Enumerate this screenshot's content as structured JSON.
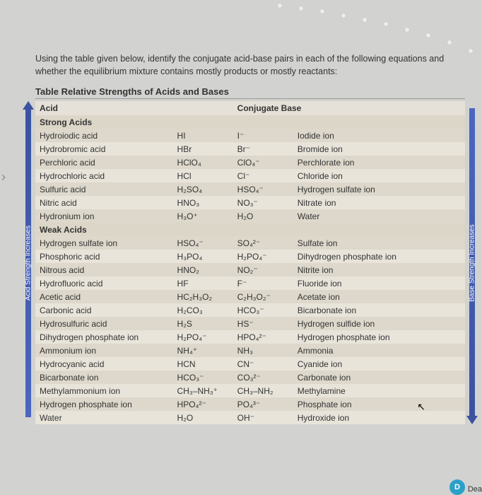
{
  "page": {
    "intro": "Using the table given below, identify the conjugate acid-base pairs in each of the following equations and whether the equilibrium mixture contains mostly products or mostly reactants:",
    "tableTitle": "Table Relative Strengths of Acids and Bases"
  },
  "arrows": {
    "left": "Acid Strength Increases",
    "right": "Base Strength Increases"
  },
  "headers": {
    "acid": "Acid",
    "conjBase": "Conjugate Base"
  },
  "sections": {
    "strong": "Strong Acids",
    "weak": "Weak Acids"
  },
  "strongRows": [
    {
      "name": "Hydroiodic acid",
      "formula": "HI",
      "baseFormula": "I⁻",
      "baseName": "Iodide ion"
    },
    {
      "name": "Hydrobromic acid",
      "formula": "HBr",
      "baseFormula": "Br⁻",
      "baseName": "Bromide ion"
    },
    {
      "name": "Perchloric acid",
      "formula": "HClO₄",
      "baseFormula": "ClO₄⁻",
      "baseName": "Perchlorate ion"
    },
    {
      "name": "Hydrochloric acid",
      "formula": "HCl",
      "baseFormula": "Cl⁻",
      "baseName": "Chloride ion"
    },
    {
      "name": "Sulfuric acid",
      "formula": "H₂SO₄",
      "baseFormula": "HSO₄⁻",
      "baseName": "Hydrogen sulfate ion"
    },
    {
      "name": "Nitric acid",
      "formula": "HNO₃",
      "baseFormula": "NO₃⁻",
      "baseName": "Nitrate ion"
    },
    {
      "name": "Hydronium ion",
      "formula": "H₃O⁺",
      "baseFormula": "H₂O",
      "baseName": "Water"
    }
  ],
  "weakRows": [
    {
      "name": "Hydrogen sulfate ion",
      "formula": "HSO₄⁻",
      "baseFormula": "SO₄²⁻",
      "baseName": "Sulfate ion"
    },
    {
      "name": "Phosphoric acid",
      "formula": "H₃PO₄",
      "baseFormula": "H₂PO₄⁻",
      "baseName": "Dihydrogen phosphate ion"
    },
    {
      "name": "Nitrous acid",
      "formula": "HNO₂",
      "baseFormula": "NO₂⁻",
      "baseName": "Nitrite ion"
    },
    {
      "name": "Hydrofluoric acid",
      "formula": "HF",
      "baseFormula": "F⁻",
      "baseName": "Fluoride ion"
    },
    {
      "name": "Acetic acid",
      "formula": "HC₂H₃O₂",
      "baseFormula": "C₂H₃O₂⁻",
      "baseName": "Acetate ion"
    },
    {
      "name": "Carbonic acid",
      "formula": "H₂CO₃",
      "baseFormula": "HCO₃⁻",
      "baseName": "Bicarbonate ion"
    },
    {
      "name": "Hydrosulfuric acid",
      "formula": "H₂S",
      "baseFormula": "HS⁻",
      "baseName": "Hydrogen sulfide ion"
    },
    {
      "name": "Dihydrogen phosphate ion",
      "formula": "H₂PO₄⁻",
      "baseFormula": "HPO₄²⁻",
      "baseName": "Hydrogen phosphate ion"
    },
    {
      "name": "Ammonium ion",
      "formula": "NH₄⁺",
      "baseFormula": "NH₃",
      "baseName": "Ammonia"
    },
    {
      "name": "Hydrocyanic acid",
      "formula": "HCN",
      "baseFormula": "CN⁻",
      "baseName": "Cyanide ion"
    },
    {
      "name": "Bicarbonate ion",
      "formula": "HCO₃⁻",
      "baseFormula": "CO₃²⁻",
      "baseName": "Carbonate ion"
    },
    {
      "name": "Methylammonium ion",
      "formula": "CH₃–NH₃⁺",
      "baseFormula": "CH₃–NH₂",
      "baseName": "Methylamine"
    },
    {
      "name": "Hydrogen phosphate ion",
      "formula": "HPO₄²⁻",
      "baseFormula": "PO₄³⁻",
      "baseName": "Phosphate ion"
    },
    {
      "name": "Water",
      "formula": "H₂O",
      "baseFormula": "OH⁻",
      "baseName": "Hydroxide ion"
    }
  ],
  "badge": {
    "symbol": "D",
    "text": "Dea"
  },
  "style": {
    "background": "#d2d2d0",
    "tableBg": "#e5e1d8",
    "arrowColor": "#3a52a0",
    "textColor": "#333333",
    "fontSizeBody": 12.5,
    "fontSizeTable": 12
  }
}
